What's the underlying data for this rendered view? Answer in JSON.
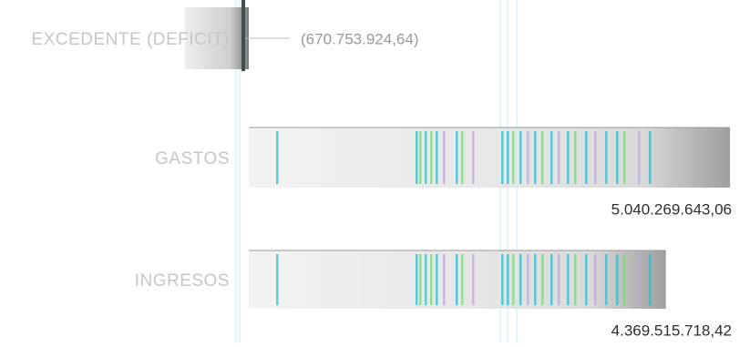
{
  "chart_data": {
    "type": "bar",
    "orientation": "horizontal",
    "categories": [
      "EXCEDENTE (DEFICIT)",
      "GASTOS",
      "INGRESOS"
    ],
    "values": [
      -670753924.64,
      5040269643.06,
      4369515718.42
    ],
    "value_labels": [
      "(670.753.924,64)",
      "5.040.269.643,06",
      "4.369.515.718,42"
    ],
    "title": "",
    "xlabel": "",
    "ylabel": "",
    "grid": false,
    "legend": "none"
  },
  "colors": {
    "background": "#ffffff",
    "bar_light": "#f4f4f4",
    "bar_mid": "#d8d8d8",
    "bar_dark": "#8a8a8a",
    "stripe_cyan": "#2bbcd0",
    "stripe_green": "#7ad67a",
    "stripe_purple": "#b9a8d8",
    "category_text": "#c6c6c6",
    "value_text": "#2e2e2e",
    "value_text_muted": "#9a9a9a",
    "scan_line": "#c8eef5"
  }
}
